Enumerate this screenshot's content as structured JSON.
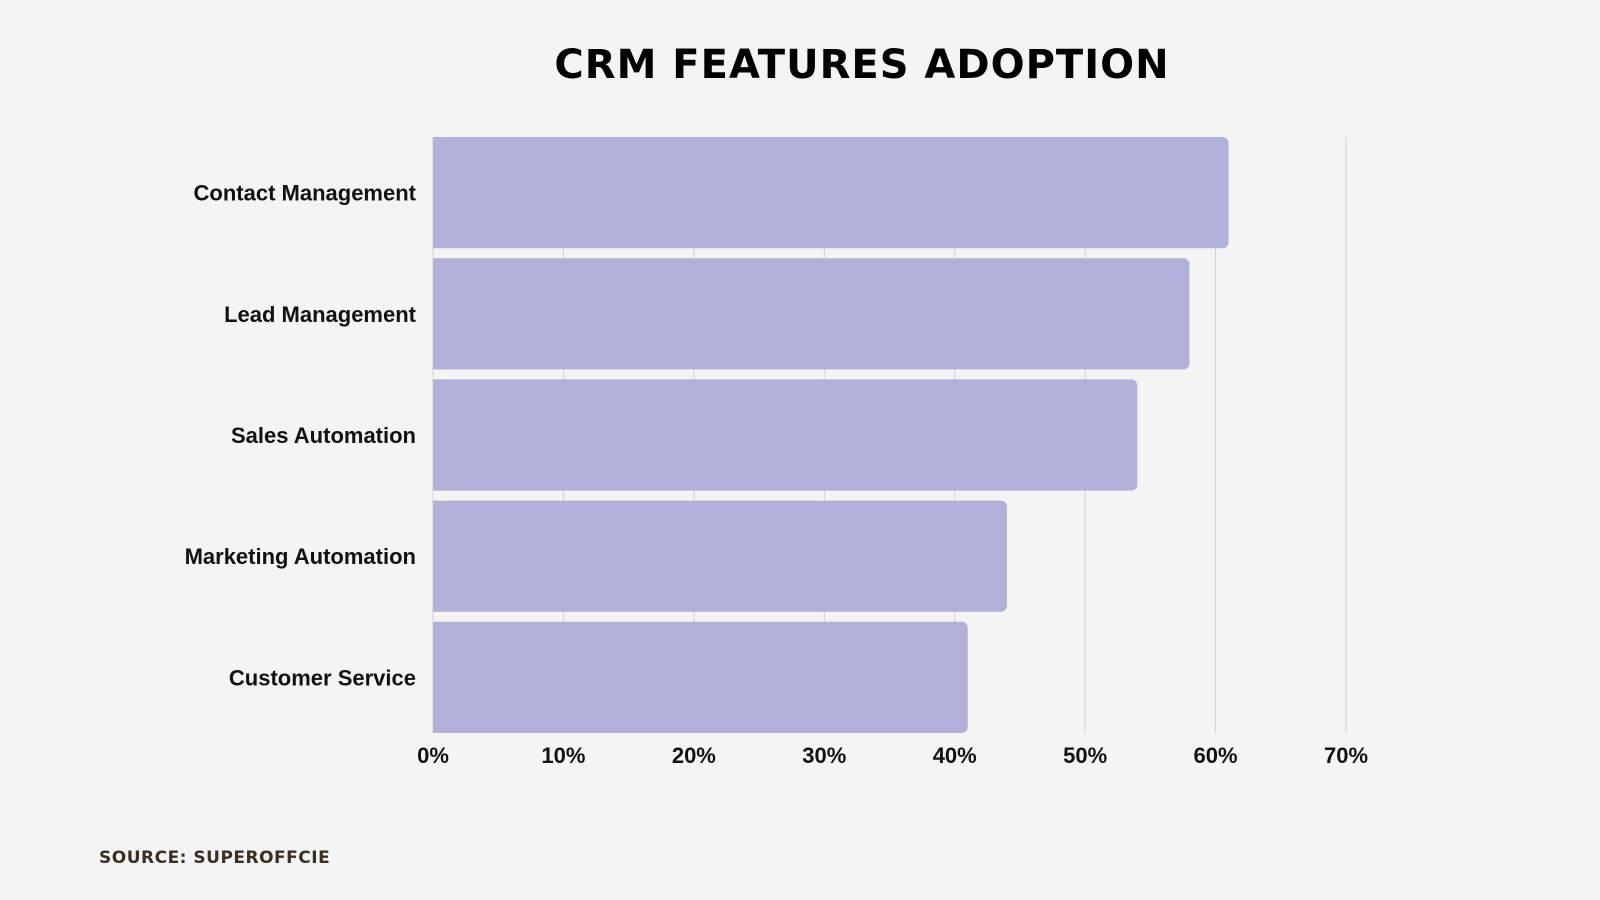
{
  "chart_data": {
    "type": "bar",
    "orientation": "horizontal",
    "title": "CRM FEATURES ADOPTION",
    "categories": [
      "Contact Management",
      "Lead Management",
      "Sales Automation",
      "Marketing Automation",
      "Customer Service"
    ],
    "values": [
      61,
      58,
      54,
      44,
      41
    ],
    "value_unit": "%",
    "xlim": [
      0,
      70
    ],
    "ticks": [
      "0%",
      "10%",
      "20%",
      "30%",
      "40%",
      "50%",
      "60%",
      "70%"
    ],
    "tick_values": [
      0,
      10,
      20,
      30,
      40,
      50,
      60,
      70
    ],
    "grid": true,
    "legend": "none",
    "bar_color": "#b1b0d9",
    "grid_color": "#d0d0d0"
  },
  "source": "SOURCE: SUPEROFFCIE"
}
